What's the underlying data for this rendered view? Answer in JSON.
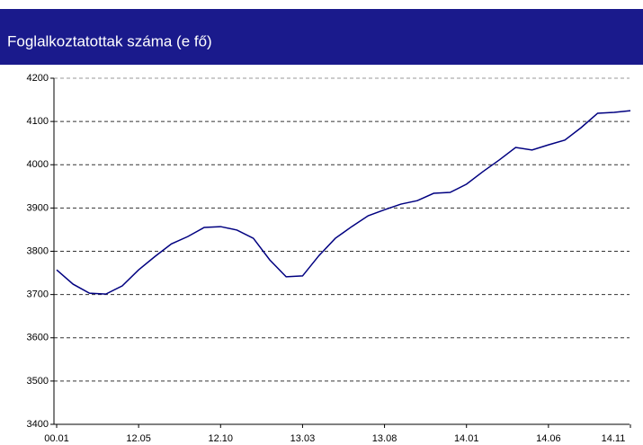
{
  "chart_data": {
    "type": "line",
    "title": "Foglalkoztatottak száma  (e fő)",
    "categories": [
      "00.01",
      null,
      null,
      null,
      null,
      "12.05",
      null,
      null,
      null,
      null,
      "12.10",
      null,
      null,
      null,
      null,
      "13.03",
      null,
      null,
      null,
      null,
      "13.08",
      null,
      null,
      null,
      null,
      "14.01",
      null,
      null,
      null,
      null,
      "14.06",
      null,
      null,
      null,
      null,
      "14.11"
    ],
    "values": [
      3757,
      3724,
      3703,
      3701,
      3720,
      3757,
      3788,
      3817,
      3834,
      3855,
      3857,
      3849,
      3830,
      3780,
      3741,
      3743,
      3790,
      3830,
      3857,
      3882,
      3896,
      3909,
      3917,
      3934,
      3936,
      3955,
      3984,
      4011,
      4040,
      4034,
      4046,
      4057,
      4086,
      4119,
      4121,
      4125
    ],
    "color": "#000080",
    "ylim": [
      3400,
      4200
    ],
    "yticks": [
      3400,
      3500,
      3600,
      3700,
      3800,
      3900,
      4000,
      4100,
      4200
    ],
    "grid": true
  }
}
